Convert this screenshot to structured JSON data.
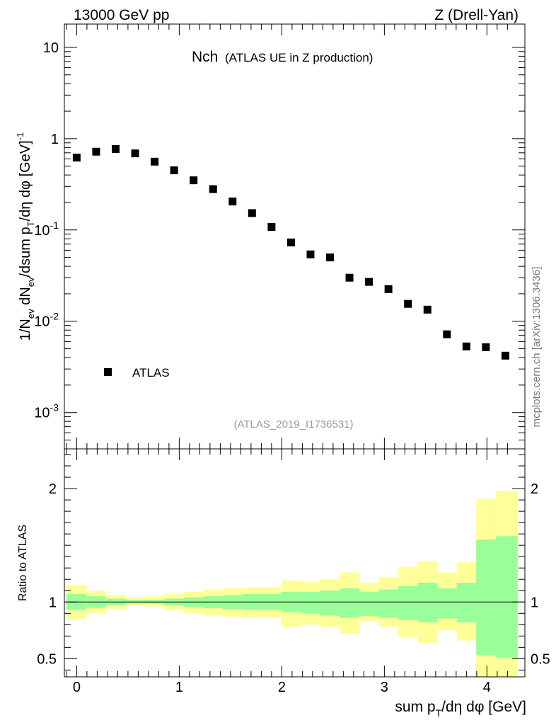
{
  "header": {
    "left": "13000 GeV pp",
    "right": "Z (Drell-Yan)"
  },
  "side_label": "mcplots.cern.ch [arXiv:1306.3436]",
  "chart_data": [
    {
      "type": "scatter",
      "title": "Nch",
      "subtitle": "(ATLAS UE in Z production)",
      "analysis_id": "(ATLAS_2019_I1736531)",
      "yscale": "log",
      "ylim": [
        0.0004,
        18
      ],
      "xlim": [
        -0.12,
        4.37
      ],
      "ylabel": "1/N_ev dN_ev/dsum p_T/dη dφ [GeV]^-1",
      "ytick_labels": [
        "10",
        "1",
        "10^-1",
        "10^-2",
        "10^-3"
      ],
      "legend": {
        "label": "ATLAS",
        "placement": "bottom-left"
      },
      "series": [
        {
          "name": "ATLAS",
          "x": [
            0.0,
            0.19,
            0.38,
            0.57,
            0.76,
            0.95,
            1.14,
            1.33,
            1.52,
            1.71,
            1.9,
            2.09,
            2.28,
            2.47,
            2.66,
            2.85,
            3.04,
            3.23,
            3.42,
            3.61,
            3.8,
            3.99,
            4.18
          ],
          "values": [
            0.62,
            0.72,
            0.77,
            0.69,
            0.56,
            0.45,
            0.35,
            0.28,
            0.205,
            0.153,
            0.108,
            0.073,
            0.054,
            0.05,
            0.03,
            0.027,
            0.0225,
            0.0155,
            0.0134,
            0.0072,
            0.0053,
            0.0052,
            0.0042
          ]
        }
      ]
    },
    {
      "type": "area",
      "ylabel": "Ratio to ATLAS",
      "xlabel": "sum p_T/dη dφ [GeV]",
      "ylim": [
        0.34,
        2.35
      ],
      "xlim": [
        -0.12,
        4.37
      ],
      "reference_line": 1,
      "x_ticks": [
        "0",
        "1",
        "2",
        "3",
        "4"
      ],
      "y_ticks": [
        "0.5",
        "1",
        "2"
      ],
      "bin_edges": [
        -0.1,
        0.095,
        0.285,
        0.475,
        0.665,
        0.855,
        1.045,
        1.235,
        1.425,
        1.615,
        1.805,
        1.995,
        2.185,
        2.375,
        2.565,
        2.755,
        2.945,
        3.135,
        3.325,
        3.515,
        3.705,
        3.895,
        4.085,
        4.3
      ],
      "series": [
        {
          "name": "inner band",
          "color": "#99ff99",
          "upper": [
            1.07,
            1.05,
            1.03,
            1.02,
            1.02,
            1.03,
            1.04,
            1.05,
            1.06,
            1.07,
            1.07,
            1.09,
            1.09,
            1.1,
            1.12,
            1.09,
            1.11,
            1.14,
            1.17,
            1.12,
            1.17,
            1.55,
            1.58
          ],
          "lower": [
            0.93,
            0.95,
            0.97,
            0.985,
            0.985,
            0.97,
            0.955,
            0.945,
            0.935,
            0.93,
            0.93,
            0.91,
            0.9,
            0.88,
            0.86,
            0.875,
            0.86,
            0.84,
            0.82,
            0.855,
            0.82,
            0.53,
            0.51
          ]
        },
        {
          "name": "outer band",
          "color": "#ffff99",
          "upper": [
            1.15,
            1.1,
            1.06,
            1.04,
            1.05,
            1.07,
            1.09,
            1.11,
            1.12,
            1.13,
            1.13,
            1.19,
            1.18,
            1.2,
            1.26,
            1.17,
            1.22,
            1.31,
            1.36,
            1.26,
            1.35,
            1.91,
            1.98
          ],
          "lower": [
            0.85,
            0.9,
            0.94,
            0.965,
            0.96,
            0.93,
            0.9,
            0.88,
            0.87,
            0.86,
            0.86,
            0.78,
            0.8,
            0.78,
            0.72,
            0.83,
            0.78,
            0.69,
            0.64,
            0.75,
            0.66,
            0.31,
            0.28
          ]
        }
      ]
    }
  ]
}
